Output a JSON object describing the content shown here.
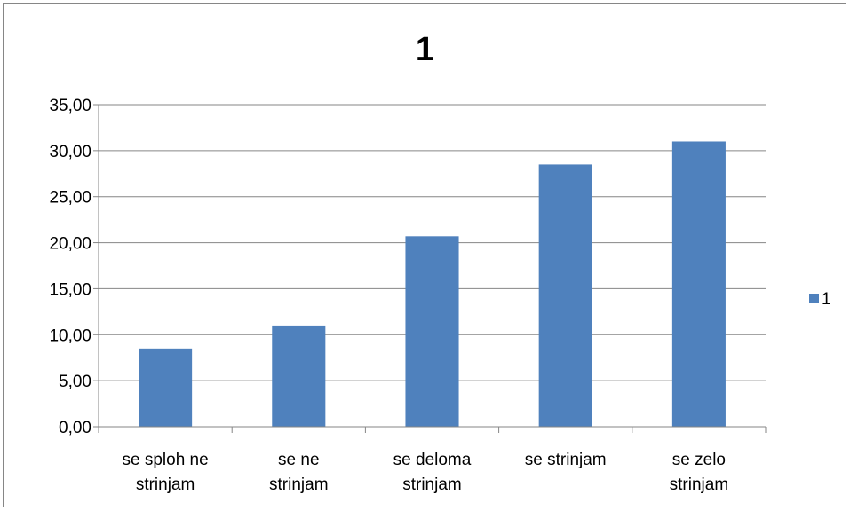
{
  "chart_data": {
    "type": "bar",
    "title": "1",
    "categories": [
      [
        "se sploh ne",
        "strinjam"
      ],
      [
        "se ne",
        "strinjam"
      ],
      [
        "se deloma",
        "strinjam"
      ],
      [
        "se strinjam"
      ],
      [
        "se zelo",
        "strinjam"
      ]
    ],
    "series": [
      {
        "name": "1",
        "color": "#4F81BD",
        "values": [
          8.5,
          11.0,
          20.7,
          28.5,
          31.0
        ]
      }
    ],
    "ylim": [
      0,
      35
    ],
    "ytick_step": 5,
    "ytick_labels": [
      "0,00",
      "5,00",
      "10,00",
      "15,00",
      "20,00",
      "25,00",
      "30,00",
      "35,00"
    ],
    "grid": true,
    "legend_position": "right",
    "xlabel": "",
    "ylabel": ""
  }
}
